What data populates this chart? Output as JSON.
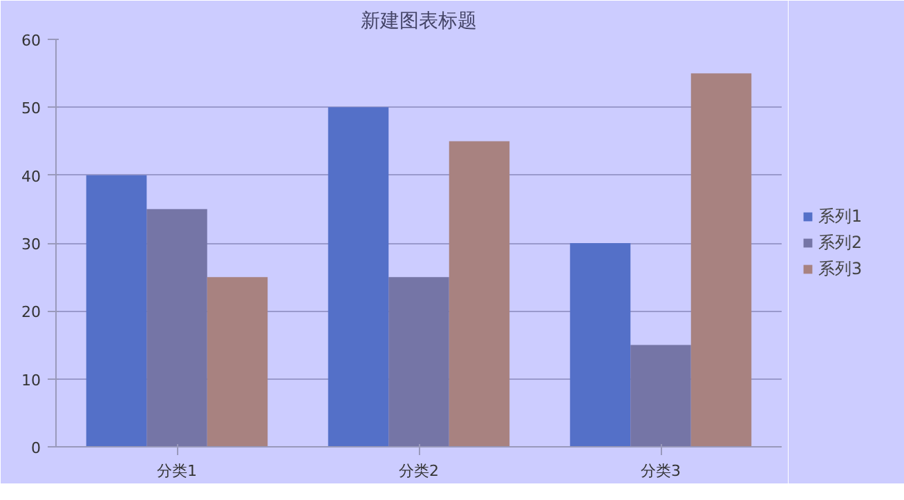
{
  "chart_data": {
    "type": "bar",
    "title": "新建图表标题",
    "categories": [
      "分类1",
      "分类2",
      "分类3"
    ],
    "series": [
      {
        "name": "系列1",
        "color": "#5470c8",
        "values": [
          40,
          50,
          30
        ]
      },
      {
        "name": "系列2",
        "color": "#7575a6",
        "values": [
          35,
          25,
          15
        ]
      },
      {
        "name": "系列3",
        "color": "#a88280",
        "values": [
          25,
          45,
          55
        ]
      }
    ],
    "ylim": [
      0,
      60
    ],
    "yticks": [
      0,
      10,
      20,
      30,
      40,
      50,
      60
    ],
    "grid": "y",
    "legend": "right"
  }
}
